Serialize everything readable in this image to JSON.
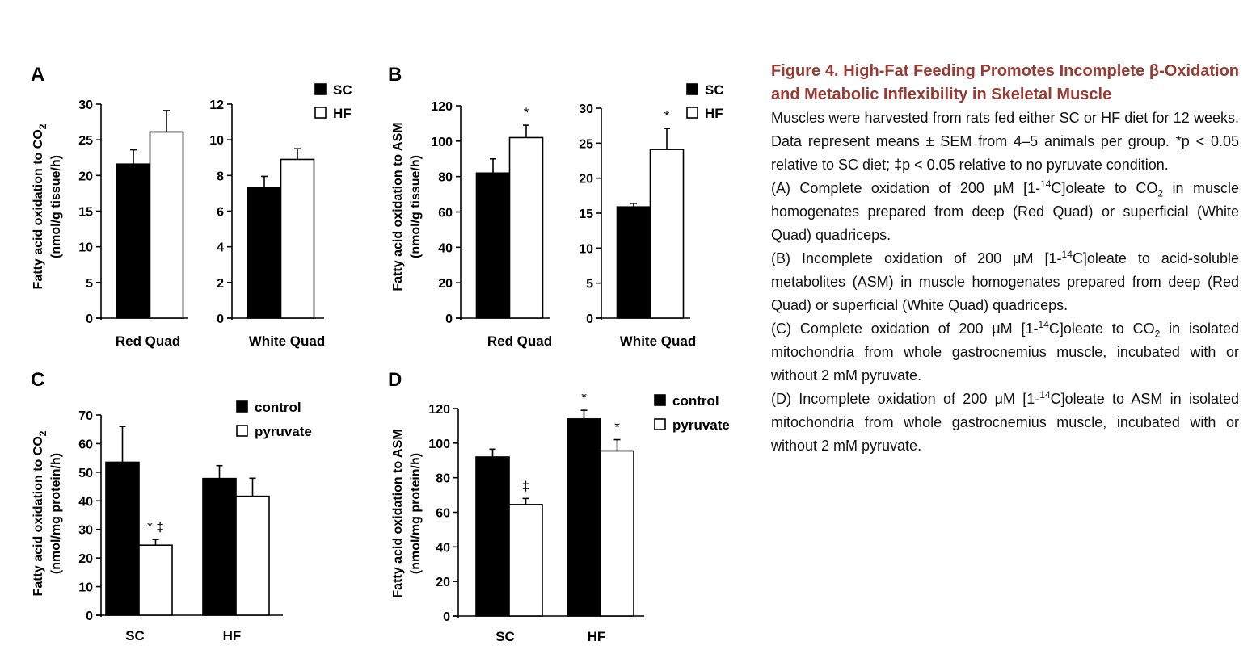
{
  "colors": {
    "control_fill": "#000000",
    "treatment_fill": "#ffffff",
    "caption_title": "#9a3b33"
  },
  "caption": {
    "title": "Figure 4. High-Fat Feeding Promotes Incomplete β-Oxidation and Metabolic Inflexibility in Skeletal Muscle",
    "intro": "Muscles were harvested from rats fed either SC or HF diet for 12 weeks. Data represent means ± SEM from 4–5 animals per group. *p < 0.05 relative to SC diet; ‡p < 0.05 relative to no pyruvate condition.",
    "paragraphs": [
      {
        "a": "(A) Complete oxidation of 200 μM [1-",
        "sup": "14",
        "b": "C]oleate to CO",
        "sub": "2",
        "c": " in muscle homogenates prepared from deep (Red Quad) or superficial (White Quad) quadriceps."
      },
      {
        "a": "(B) Incomplete oxidation of 200 μM [1-",
        "sup": "14",
        "b": "C]oleate to acid-soluble metabolites (ASM) in muscle homogenates prepared from deep (Red Quad) or superficial (White Quad) quadriceps.",
        "sub": "",
        "c": ""
      },
      {
        "a": "(C) Complete oxidation of 200 μM [1-",
        "sup": "14",
        "b": "C]oleate to CO",
        "sub": "2",
        "c": " in isolated mitochondria from whole gastrocnemius muscle, incubated with or without 2 mM pyruvate."
      },
      {
        "a": "(D) Incomplete oxidation of 200 μM [1-",
        "sup": "14",
        "b": "C]oleate to ASM in isolated mitochondria from whole gastrocnemius muscle, incubated with or without 2 mM pyruvate.",
        "sub": "",
        "c": ""
      }
    ]
  },
  "chart_data": [
    {
      "panel": "A",
      "type": "bar",
      "ylabel_line1": "Fatty acid oxidation to CO",
      "ylabel_sub": "2",
      "ylabel_line2": "(nmol/g tissue/h)",
      "legend": [
        "SC",
        "HF"
      ],
      "subplots": [
        {
          "category": "Red Quad",
          "ylim": [
            0,
            30
          ],
          "ticks": [
            0,
            5,
            10,
            15,
            20,
            25,
            30
          ],
          "bars": [
            {
              "series": "SC",
              "value": 21.6,
              "err": 2.0,
              "annot": ""
            },
            {
              "series": "HF",
              "value": 26.1,
              "err": 3.0,
              "annot": ""
            }
          ]
        },
        {
          "category": "White Quad",
          "ylim": [
            0,
            12
          ],
          "ticks": [
            0,
            2,
            4,
            6,
            8,
            10,
            12
          ],
          "bars": [
            {
              "series": "SC",
              "value": 7.3,
              "err": 0.65,
              "annot": ""
            },
            {
              "series": "HF",
              "value": 8.9,
              "err": 0.6,
              "annot": ""
            }
          ]
        }
      ]
    },
    {
      "panel": "B",
      "type": "bar",
      "ylabel_line1": "Fatty acid oxidation to  ASM",
      "ylabel_sub": "",
      "ylabel_line2": "(nmol/g tissue/h)",
      "legend": [
        "SC",
        "HF"
      ],
      "subplots": [
        {
          "category": "Red Quad",
          "ylim": [
            0,
            120
          ],
          "ticks": [
            0,
            20,
            40,
            60,
            80,
            100,
            120
          ],
          "bars": [
            {
              "series": "SC",
              "value": 82,
              "err": 8,
              "annot": ""
            },
            {
              "series": "HF",
              "value": 102,
              "err": 7,
              "annot": "*"
            }
          ]
        },
        {
          "category": "White Quad",
          "ylim": [
            0,
            30
          ],
          "ticks": [
            0,
            5,
            10,
            15,
            20,
            25,
            30
          ],
          "bars": [
            {
              "series": "SC",
              "value": 15.9,
              "err": 0.5,
              "annot": ""
            },
            {
              "series": "HF",
              "value": 24.1,
              "err": 3.0,
              "annot": "*"
            }
          ]
        }
      ]
    },
    {
      "panel": "C",
      "type": "bar",
      "ylabel_line1": "Fatty acid oxidation to CO",
      "ylabel_sub": "2",
      "ylabel_line2": "(nmol/mg protein/h)",
      "legend": [
        "control",
        "pyruvate"
      ],
      "categories": [
        "SC",
        "HF"
      ],
      "ylim": [
        0,
        70
      ],
      "ticks": [
        0,
        10,
        20,
        30,
        40,
        50,
        60,
        70
      ],
      "series": [
        {
          "name": "control",
          "values": [
            53.5,
            47.8
          ],
          "errors": [
            12.5,
            4.5
          ],
          "annots": [
            "",
            ""
          ]
        },
        {
          "name": "pyruvate",
          "values": [
            24.5,
            41.6
          ],
          "errors": [
            2.0,
            6.3
          ],
          "annots": [
            "* ‡",
            ""
          ]
        }
      ]
    },
    {
      "panel": "D",
      "type": "bar",
      "ylabel_line1": "Fatty acid oxidation to  ASM",
      "ylabel_sub": "",
      "ylabel_line2": "(nmol/mg protein/h)",
      "legend": [
        "control",
        "pyruvate"
      ],
      "categories": [
        "SC",
        "HF"
      ],
      "ylim": [
        0,
        120
      ],
      "ticks": [
        0,
        20,
        40,
        60,
        80,
        100,
        120
      ],
      "series": [
        {
          "name": "control",
          "values": [
            92,
            114
          ],
          "errors": [
            4.5,
            5.0
          ],
          "annots": [
            "",
            "*"
          ]
        },
        {
          "name": "pyruvate",
          "values": [
            64.5,
            95.5
          ],
          "errors": [
            3.5,
            6.5
          ],
          "annots": [
            "‡",
            "*"
          ]
        }
      ]
    }
  ]
}
